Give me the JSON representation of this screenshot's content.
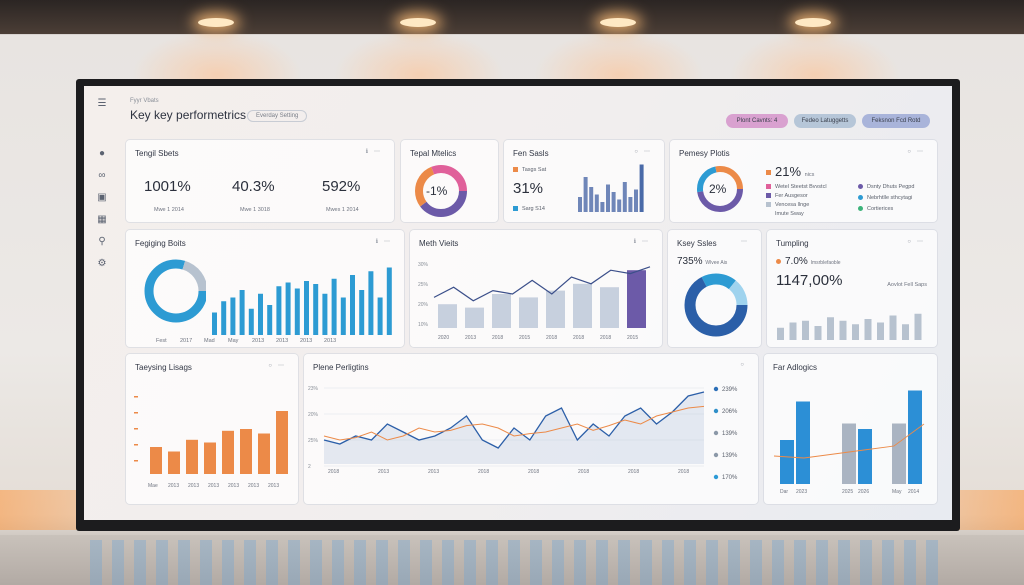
{
  "header": {
    "pretitle": "Fyyr Vbats",
    "title": "Key key performetrics",
    "tag": "Everday Setting",
    "pills": [
      {
        "label": "Plont Cavnts: 4",
        "color": "#d9a1d0"
      },
      {
        "label": "Fedeo Latuggetts",
        "color": "#b6c6d8"
      },
      {
        "label": "Feksnon Fcd Rotd",
        "color": "#a9b4da"
      }
    ]
  },
  "sidebar": {
    "icons": [
      "menu-icon",
      "user-icon",
      "link-icon",
      "inbox-icon",
      "chart-icon",
      "search-icon",
      "settings-icon"
    ]
  },
  "cards": {
    "total_sales": {
      "title": "Tengil Sbets",
      "kpis": [
        {
          "value": "1001%",
          "sub": "Mwe 1 2014"
        },
        {
          "value": "40.3%",
          "sub": "Mwe 1 3018"
        },
        {
          "value": "592%",
          "sub": "Mwes 1 2014"
        }
      ]
    },
    "total_metrics": {
      "title": "Tepal Mtelics",
      "center": "-1%"
    },
    "fen_sales": {
      "title": "Fen Sasls",
      "legend_top": "Tasgs Sat",
      "value": "31%",
      "legend_bottom": "Sarg S14",
      "bars": [
        0.3,
        0.7,
        0.5,
        0.35,
        0.2,
        0.55,
        0.4,
        0.25,
        0.6,
        0.3,
        0.45,
        0.95
      ]
    },
    "property_plots": {
      "title": "Pemesy Plotis",
      "center": "2%",
      "value": "21%",
      "value_suffix": "nics",
      "legend_left": [
        "Wetel Steetst Bvvstcl",
        "Fer Ausgesor",
        "Vencesa llnge",
        "Imute Sway"
      ],
      "legend_right": [
        "Dsnty Dhuts Pegpd",
        "Nebrhtlle sthcytagi",
        "Cortierices"
      ]
    },
    "ranking_boosts": {
      "title": "Fegiging Boits",
      "x_labels": [
        "Fest",
        "2017",
        "Mad",
        "May",
        "2013",
        "2013",
        "2013",
        "2013"
      ],
      "bars": [
        0.3,
        0.45,
        0.5,
        0.6,
        0.35,
        0.55,
        0.4,
        0.65,
        0.7,
        0.62,
        0.72,
        0.68,
        0.55,
        0.75,
        0.5,
        0.8,
        0.6,
        0.85,
        0.5,
        0.9
      ]
    },
    "math_visits": {
      "title": "Meth Vieits",
      "y_labels": [
        "30%",
        "25%",
        "20%",
        "10%"
      ],
      "x_labels": [
        "2020",
        "2013",
        "2018",
        "2015",
        "2018",
        "2018",
        "2018",
        "2015"
      ],
      "bars": [
        0.35,
        0.3,
        0.5,
        0.45,
        0.55,
        0.65,
        0.6,
        0.85
      ],
      "line": [
        0.45,
        0.6,
        0.4,
        0.55,
        0.5,
        0.7,
        0.5,
        0.75,
        0.65,
        0.85,
        0.8,
        0.9
      ]
    },
    "key_sales": {
      "title": "Ksey Ssles",
      "value": "735%",
      "value_suffix": "Wlvee Ais"
    },
    "tumpling": {
      "title": "Tumpling",
      "value_small": "7.0%",
      "value_small_suffix": "Imsrblefaoble",
      "value": "1147,00%",
      "note": "Aovlot Fell Saps",
      "bars": [
        0.35,
        0.5,
        0.55,
        0.4,
        0.65,
        0.55,
        0.45,
        0.6,
        0.5,
        0.7,
        0.45,
        0.75
      ]
    },
    "tracking_usage": {
      "title": "Taeysing Lisags",
      "x_labels": [
        "Mae",
        "2013",
        "2013",
        "2013",
        "2013",
        "2013",
        "2013"
      ],
      "bars": [
        0.3,
        0.25,
        0.38,
        0.35,
        0.48,
        0.5,
        0.45,
        0.7
      ]
    },
    "plane_pertigtins": {
      "title": "Plene Perligtins",
      "y_labels": [
        "23%",
        "20%",
        "25%",
        "2"
      ],
      "x_labels": [
        "2018",
        "2013",
        "2013",
        "2018",
        "2018",
        "2018",
        "2018",
        "2018"
      ],
      "legend": [
        {
          "value": "239%",
          "color": "#2c6fb7"
        },
        {
          "value": "206%",
          "color": "#2f8fc9"
        },
        {
          "value": "139%",
          "color": "#8b98a8"
        },
        {
          "value": "139%",
          "color": "#8b98a8"
        },
        {
          "value": "170%",
          "color": "#2c9ad6"
        }
      ],
      "line_a": [
        0.3,
        0.25,
        0.35,
        0.3,
        0.5,
        0.4,
        0.3,
        0.35,
        0.45,
        0.6,
        0.3,
        0.2,
        0.45,
        0.3,
        0.6,
        0.7,
        0.3,
        0.5,
        0.35,
        0.6,
        0.7,
        0.5,
        0.65,
        0.85,
        0.9
      ],
      "line_b": [
        0.35,
        0.3,
        0.33,
        0.4,
        0.3,
        0.35,
        0.45,
        0.4,
        0.42,
        0.48,
        0.5,
        0.45,
        0.35,
        0.38,
        0.4,
        0.45,
        0.5,
        0.42,
        0.48,
        0.55,
        0.5,
        0.6,
        0.65,
        0.7,
        0.72
      ]
    },
    "far_adlogics": {
      "title": "Far Adlogics",
      "x_labels": [
        "Dar",
        "2023",
        "2025",
        "2026",
        "May",
        "2014"
      ],
      "bars": [
        {
          "v": 0.4,
          "c": "#2c8fd6"
        },
        {
          "v": 0.75,
          "c": "#2c8fd6"
        },
        {
          "v": 0.55,
          "c": "#aab4c2"
        },
        {
          "v": 0.5,
          "c": "#2c8fd6"
        },
        {
          "v": 0.55,
          "c": "#aab4c2"
        },
        {
          "v": 0.85,
          "c": "#2c8fd6"
        }
      ]
    }
  },
  "colors": {
    "blue": "#2d9bd3",
    "navy": "#2b5fa8",
    "purple": "#6c5aa8",
    "orange": "#ec8a48",
    "gray": "#b7c2cf"
  }
}
